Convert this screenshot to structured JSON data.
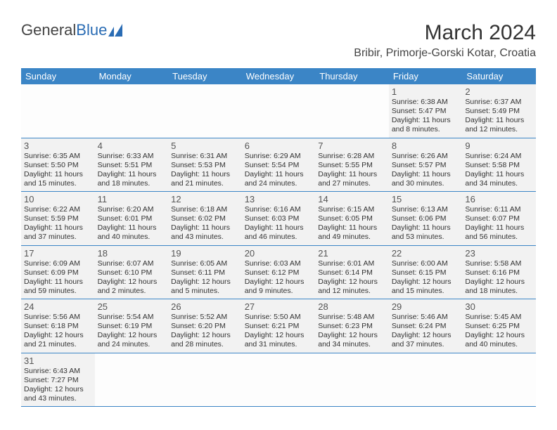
{
  "logo": {
    "text1": "General",
    "text2": "Blue"
  },
  "title": "March 2024",
  "location": "Bribir, Primorje-Gorski Kotar, Croatia",
  "headers": [
    "Sunday",
    "Monday",
    "Tuesday",
    "Wednesday",
    "Thursday",
    "Friday",
    "Saturday"
  ],
  "header_bg": "#3b85c6",
  "cell_bg": "#f2f2f2",
  "border_color": "#3b85c6",
  "weeks": [
    [
      null,
      null,
      null,
      null,
      null,
      {
        "n": "1",
        "sr": "Sunrise: 6:38 AM",
        "ss": "Sunset: 5:47 PM",
        "d1": "Daylight: 11 hours",
        "d2": "and 8 minutes."
      },
      {
        "n": "2",
        "sr": "Sunrise: 6:37 AM",
        "ss": "Sunset: 5:49 PM",
        "d1": "Daylight: 11 hours",
        "d2": "and 12 minutes."
      }
    ],
    [
      {
        "n": "3",
        "sr": "Sunrise: 6:35 AM",
        "ss": "Sunset: 5:50 PM",
        "d1": "Daylight: 11 hours",
        "d2": "and 15 minutes."
      },
      {
        "n": "4",
        "sr": "Sunrise: 6:33 AM",
        "ss": "Sunset: 5:51 PM",
        "d1": "Daylight: 11 hours",
        "d2": "and 18 minutes."
      },
      {
        "n": "5",
        "sr": "Sunrise: 6:31 AM",
        "ss": "Sunset: 5:53 PM",
        "d1": "Daylight: 11 hours",
        "d2": "and 21 minutes."
      },
      {
        "n": "6",
        "sr": "Sunrise: 6:29 AM",
        "ss": "Sunset: 5:54 PM",
        "d1": "Daylight: 11 hours",
        "d2": "and 24 minutes."
      },
      {
        "n": "7",
        "sr": "Sunrise: 6:28 AM",
        "ss": "Sunset: 5:55 PM",
        "d1": "Daylight: 11 hours",
        "d2": "and 27 minutes."
      },
      {
        "n": "8",
        "sr": "Sunrise: 6:26 AM",
        "ss": "Sunset: 5:57 PM",
        "d1": "Daylight: 11 hours",
        "d2": "and 30 minutes."
      },
      {
        "n": "9",
        "sr": "Sunrise: 6:24 AM",
        "ss": "Sunset: 5:58 PM",
        "d1": "Daylight: 11 hours",
        "d2": "and 34 minutes."
      }
    ],
    [
      {
        "n": "10",
        "sr": "Sunrise: 6:22 AM",
        "ss": "Sunset: 5:59 PM",
        "d1": "Daylight: 11 hours",
        "d2": "and 37 minutes."
      },
      {
        "n": "11",
        "sr": "Sunrise: 6:20 AM",
        "ss": "Sunset: 6:01 PM",
        "d1": "Daylight: 11 hours",
        "d2": "and 40 minutes."
      },
      {
        "n": "12",
        "sr": "Sunrise: 6:18 AM",
        "ss": "Sunset: 6:02 PM",
        "d1": "Daylight: 11 hours",
        "d2": "and 43 minutes."
      },
      {
        "n": "13",
        "sr": "Sunrise: 6:16 AM",
        "ss": "Sunset: 6:03 PM",
        "d1": "Daylight: 11 hours",
        "d2": "and 46 minutes."
      },
      {
        "n": "14",
        "sr": "Sunrise: 6:15 AM",
        "ss": "Sunset: 6:05 PM",
        "d1": "Daylight: 11 hours",
        "d2": "and 49 minutes."
      },
      {
        "n": "15",
        "sr": "Sunrise: 6:13 AM",
        "ss": "Sunset: 6:06 PM",
        "d1": "Daylight: 11 hours",
        "d2": "and 53 minutes."
      },
      {
        "n": "16",
        "sr": "Sunrise: 6:11 AM",
        "ss": "Sunset: 6:07 PM",
        "d1": "Daylight: 11 hours",
        "d2": "and 56 minutes."
      }
    ],
    [
      {
        "n": "17",
        "sr": "Sunrise: 6:09 AM",
        "ss": "Sunset: 6:09 PM",
        "d1": "Daylight: 11 hours",
        "d2": "and 59 minutes."
      },
      {
        "n": "18",
        "sr": "Sunrise: 6:07 AM",
        "ss": "Sunset: 6:10 PM",
        "d1": "Daylight: 12 hours",
        "d2": "and 2 minutes."
      },
      {
        "n": "19",
        "sr": "Sunrise: 6:05 AM",
        "ss": "Sunset: 6:11 PM",
        "d1": "Daylight: 12 hours",
        "d2": "and 5 minutes."
      },
      {
        "n": "20",
        "sr": "Sunrise: 6:03 AM",
        "ss": "Sunset: 6:12 PM",
        "d1": "Daylight: 12 hours",
        "d2": "and 9 minutes."
      },
      {
        "n": "21",
        "sr": "Sunrise: 6:01 AM",
        "ss": "Sunset: 6:14 PM",
        "d1": "Daylight: 12 hours",
        "d2": "and 12 minutes."
      },
      {
        "n": "22",
        "sr": "Sunrise: 6:00 AM",
        "ss": "Sunset: 6:15 PM",
        "d1": "Daylight: 12 hours",
        "d2": "and 15 minutes."
      },
      {
        "n": "23",
        "sr": "Sunrise: 5:58 AM",
        "ss": "Sunset: 6:16 PM",
        "d1": "Daylight: 12 hours",
        "d2": "and 18 minutes."
      }
    ],
    [
      {
        "n": "24",
        "sr": "Sunrise: 5:56 AM",
        "ss": "Sunset: 6:18 PM",
        "d1": "Daylight: 12 hours",
        "d2": "and 21 minutes."
      },
      {
        "n": "25",
        "sr": "Sunrise: 5:54 AM",
        "ss": "Sunset: 6:19 PM",
        "d1": "Daylight: 12 hours",
        "d2": "and 24 minutes."
      },
      {
        "n": "26",
        "sr": "Sunrise: 5:52 AM",
        "ss": "Sunset: 6:20 PM",
        "d1": "Daylight: 12 hours",
        "d2": "and 28 minutes."
      },
      {
        "n": "27",
        "sr": "Sunrise: 5:50 AM",
        "ss": "Sunset: 6:21 PM",
        "d1": "Daylight: 12 hours",
        "d2": "and 31 minutes."
      },
      {
        "n": "28",
        "sr": "Sunrise: 5:48 AM",
        "ss": "Sunset: 6:23 PM",
        "d1": "Daylight: 12 hours",
        "d2": "and 34 minutes."
      },
      {
        "n": "29",
        "sr": "Sunrise: 5:46 AM",
        "ss": "Sunset: 6:24 PM",
        "d1": "Daylight: 12 hours",
        "d2": "and 37 minutes."
      },
      {
        "n": "30",
        "sr": "Sunrise: 5:45 AM",
        "ss": "Sunset: 6:25 PM",
        "d1": "Daylight: 12 hours",
        "d2": "and 40 minutes."
      }
    ],
    [
      {
        "n": "31",
        "sr": "Sunrise: 6:43 AM",
        "ss": "Sunset: 7:27 PM",
        "d1": "Daylight: 12 hours",
        "d2": "and 43 minutes."
      },
      null,
      null,
      null,
      null,
      null,
      null
    ]
  ]
}
